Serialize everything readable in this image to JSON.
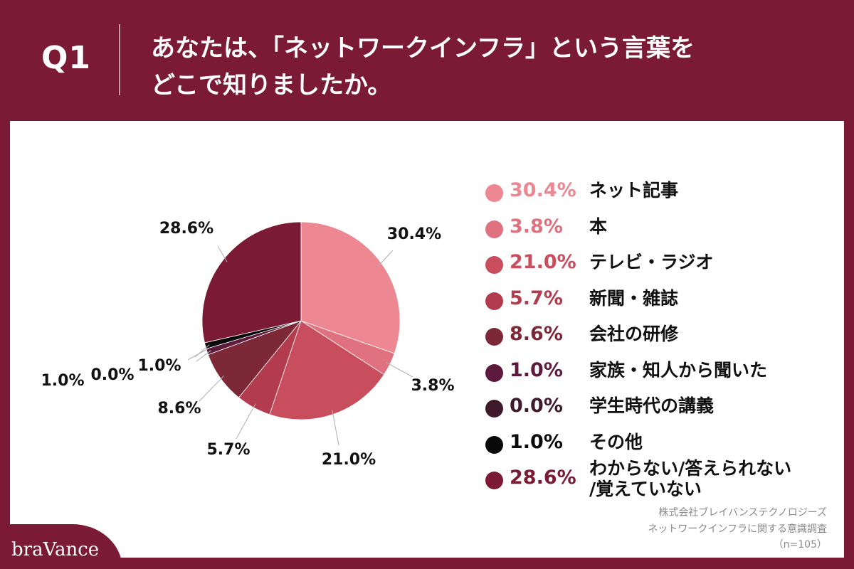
{
  "header": {
    "q_label": "Q1",
    "question_lines": [
      "あなたは、「ネットワークインフラ」という言葉を",
      "どこで知りましたか。"
    ]
  },
  "colors": {
    "background": "#7a1a35",
    "card": "#ffffff"
  },
  "chart_data": {
    "type": "pie",
    "start_angle_deg": 0,
    "direction": "clockwise",
    "slices": [
      {
        "label": "ネット記事",
        "label_lines": [
          "ネット記事"
        ],
        "value": 30.4,
        "display": "30.4%",
        "color": "#ed8791"
      },
      {
        "label": "本",
        "label_lines": [
          "本"
        ],
        "value": 3.8,
        "display": "3.8%",
        "color": "#e07280"
      },
      {
        "label": "テレビ・ラジオ",
        "label_lines": [
          "テレビ・ラジオ"
        ],
        "value": 21.0,
        "display": "21.0%",
        "color": "#c84e5d"
      },
      {
        "label": "新聞・雑誌",
        "label_lines": [
          "新聞・雑誌"
        ],
        "value": 5.7,
        "display": "5.7%",
        "color": "#b23b4d"
      },
      {
        "label": "会社の研修",
        "label_lines": [
          "会社の研修"
        ],
        "value": 8.6,
        "display": "8.6%",
        "color": "#7d2837"
      },
      {
        "label": "家族・知人から聞いた",
        "label_lines": [
          "家族・知人から聞いた"
        ],
        "value": 1.0,
        "display": "1.0%",
        "color": "#5e1a3c"
      },
      {
        "label": "学生時代の講義",
        "label_lines": [
          "学生時代の講義"
        ],
        "value": 0.0,
        "display": "0.0%",
        "color": "#3e1a2a"
      },
      {
        "label": "その他",
        "label_lines": [
          "その他"
        ],
        "value": 1.0,
        "display": "1.0%",
        "color": "#0a0a0a"
      },
      {
        "label": "わからない/答えられない/覚えていない",
        "label_lines": [
          "わからない/答えられない",
          "/覚えていない"
        ],
        "value": 28.6,
        "display": "28.6%",
        "color": "#7a1a35"
      }
    ]
  },
  "source": {
    "lines": [
      "株式会社ブレイバンステクノロジーズ",
      "ネットワークインフラに関する意識調査",
      "（n=105）"
    ]
  },
  "logo": {
    "text": "braVance"
  }
}
